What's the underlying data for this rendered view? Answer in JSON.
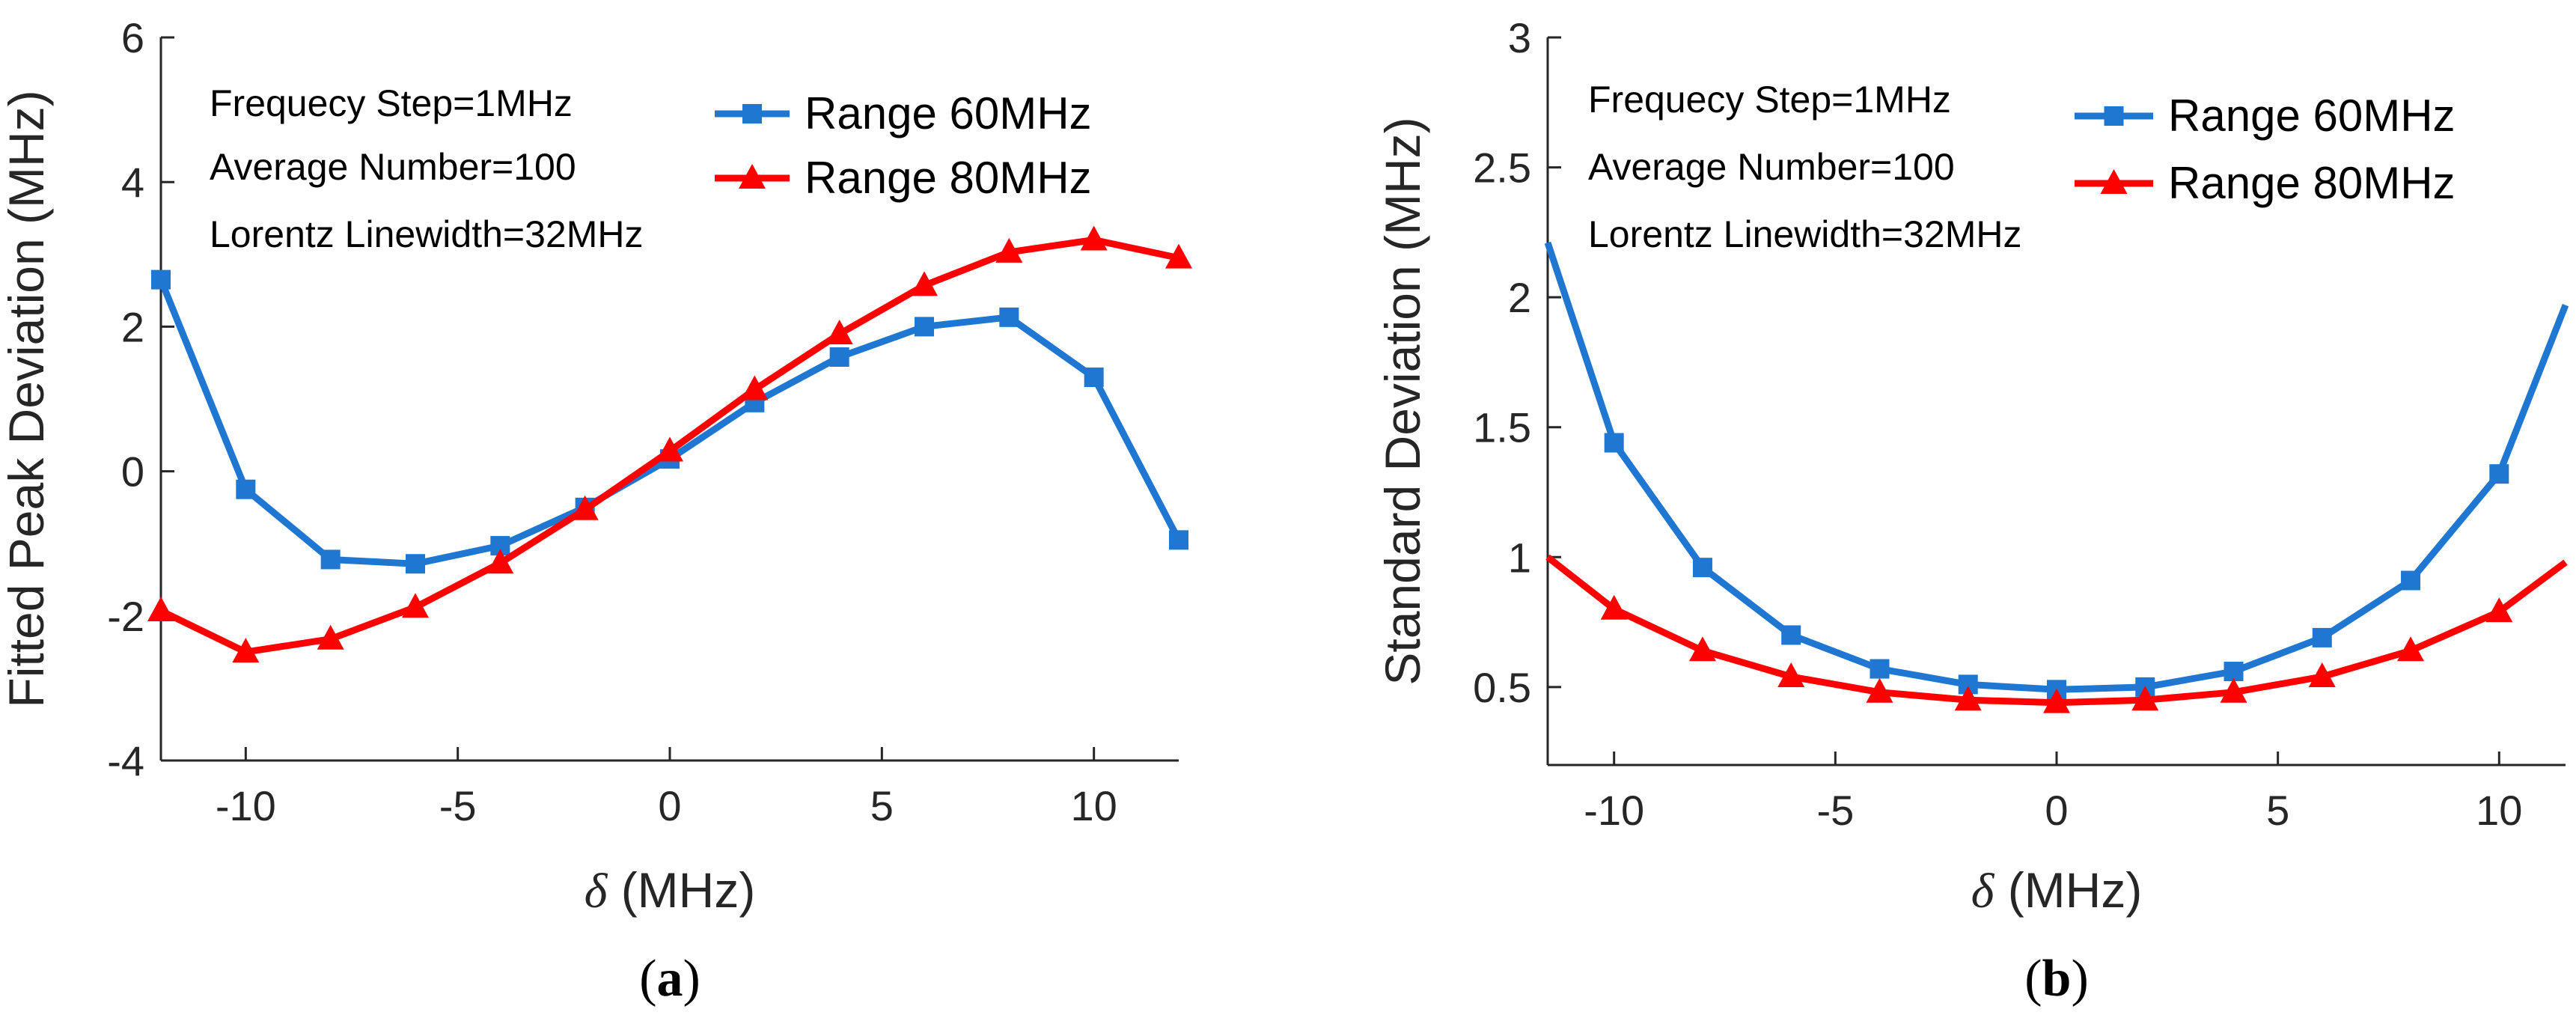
{
  "colors": {
    "series_60": "#1f77d2",
    "series_80": "#ff0000",
    "axis": "#262626"
  },
  "chart_data": [
    {
      "type": "line",
      "subfigure_label": "(a)",
      "subfigure_letter": "a",
      "xlabel_symbol": "δ",
      "xlabel_unit": "(MHz)",
      "ylabel": "Fitted Peak Deviation (MHz)",
      "xlim": [
        -12,
        12
      ],
      "ylim": [
        -4,
        6
      ],
      "xticks": [
        -10,
        -5,
        0,
        5,
        10
      ],
      "xtick_labels": [
        "-10",
        "-5",
        "0",
        "5",
        "10"
      ],
      "yticks": [
        -4,
        -2,
        0,
        2,
        4,
        6
      ],
      "ytick_labels": [
        "-4",
        "-2",
        "0",
        "2",
        "4",
        "6"
      ],
      "annotations": [
        "Frequecy Step=1MHz",
        "Average Number=100",
        "Lorentz Linewidth=32MHz"
      ],
      "legend_position": "top-right",
      "series": [
        {
          "name": "Range 60MHz",
          "marker": "square",
          "color": "#1f77d2",
          "x": [
            -12,
            -10,
            -8,
            -6,
            -4,
            -2,
            0,
            2,
            4,
            6,
            8,
            10,
            12
          ],
          "y": [
            2.65,
            -0.25,
            -1.22,
            -1.28,
            -1.03,
            -0.5,
            0.17,
            0.95,
            1.58,
            2.0,
            2.13,
            1.3,
            -0.95
          ]
        },
        {
          "name": "Range 80MHz",
          "marker": "triangle",
          "color": "#ff0000",
          "x": [
            -12,
            -10,
            -8,
            -6,
            -4,
            -2,
            0,
            2,
            4,
            6,
            8,
            10,
            12
          ],
          "y": [
            -1.93,
            -2.5,
            -2.32,
            -1.88,
            -1.27,
            -0.53,
            0.28,
            1.13,
            1.9,
            2.57,
            3.03,
            3.2,
            2.95
          ]
        }
      ]
    },
    {
      "type": "line",
      "subfigure_label": "(b)",
      "subfigure_letter": "b",
      "xlabel_symbol": "δ",
      "xlabel_unit": "(MHz)",
      "ylabel": "Standard  Deviation (MHz)",
      "xlim": [
        -11.5,
        11.5
      ],
      "ylim": [
        0.2,
        3
      ],
      "xticks": [
        -10,
        -5,
        0,
        5,
        10
      ],
      "xtick_labels": [
        "-10",
        "-5",
        "0",
        "5",
        "10"
      ],
      "yticks": [
        0.5,
        1,
        1.5,
        2,
        2.5,
        3
      ],
      "ytick_labels": [
        "0.5",
        "1",
        "1.5",
        "2",
        "2.5",
        "3"
      ],
      "annotations": [
        "Frequecy Step=1MHz",
        "Average Number=100",
        "Lorentz Linewidth=32MHz"
      ],
      "legend_position": "top-right",
      "series": [
        {
          "name": "Range 60MHz",
          "marker": "square",
          "color": "#1f77d2",
          "x": [
            -11.5,
            -10,
            -8,
            -6,
            -4,
            -2,
            0,
            2,
            4,
            6,
            8,
            10,
            11.5
          ],
          "y": [
            2.21,
            1.44,
            0.96,
            0.7,
            0.57,
            0.51,
            0.49,
            0.5,
            0.56,
            0.69,
            0.91,
            1.32,
            1.97
          ],
          "markers": [
            false,
            true,
            true,
            true,
            true,
            true,
            true,
            true,
            true,
            true,
            true,
            true,
            false
          ]
        },
        {
          "name": "Range 80MHz",
          "marker": "triangle",
          "color": "#ff0000",
          "x": [
            -11.5,
            -10,
            -8,
            -6,
            -4,
            -2,
            0,
            2,
            4,
            6,
            8,
            10,
            11.5
          ],
          "y": [
            1.0,
            0.8,
            0.64,
            0.54,
            0.48,
            0.45,
            0.44,
            0.45,
            0.48,
            0.54,
            0.64,
            0.79,
            0.98
          ],
          "markers": [
            false,
            true,
            true,
            true,
            true,
            true,
            true,
            true,
            true,
            true,
            true,
            true,
            false
          ]
        }
      ]
    }
  ]
}
